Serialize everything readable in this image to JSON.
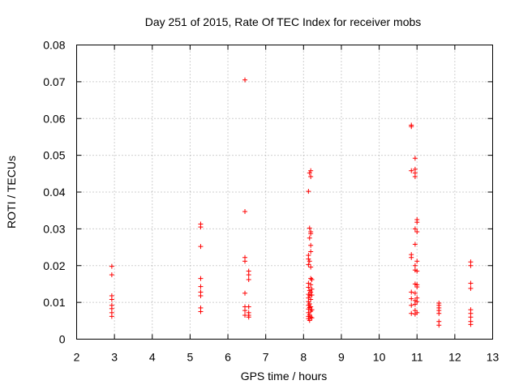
{
  "chart_data": {
    "type": "scatter",
    "title": "Day 251 of 2015, Rate Of TEC Index for receiver mobs",
    "xlabel": "GPS time / hours",
    "ylabel": "ROTI / TECUs",
    "xlim": [
      2,
      13
    ],
    "ylim": [
      0,
      0.08
    ],
    "x_ticks": [
      "2",
      "3",
      "4",
      "5",
      "6",
      "7",
      "8",
      "9",
      "10",
      "11",
      "12",
      "13"
    ],
    "y_ticks": [
      "0",
      "0.01",
      "0.02",
      "0.03",
      "0.04",
      "0.05",
      "0.06",
      "0.07",
      "0.08"
    ],
    "grid": true,
    "marker": "+",
    "color": "#ff0000",
    "series": [
      {
        "name": "mobs",
        "points": [
          [
            2.93,
            0.0198
          ],
          [
            2.93,
            0.0175
          ],
          [
            2.93,
            0.0118
          ],
          [
            2.93,
            0.0108
          ],
          [
            2.93,
            0.0092
          ],
          [
            2.93,
            0.0083
          ],
          [
            2.93,
            0.0072
          ],
          [
            2.93,
            0.0062
          ],
          [
            5.28,
            0.0313
          ],
          [
            5.28,
            0.0305
          ],
          [
            5.28,
            0.0252
          ],
          [
            5.28,
            0.0165
          ],
          [
            5.28,
            0.0143
          ],
          [
            5.28,
            0.0128
          ],
          [
            5.28,
            0.0118
          ],
          [
            5.28,
            0.0085
          ],
          [
            5.28,
            0.0075
          ],
          [
            6.45,
            0.0705
          ],
          [
            6.45,
            0.0347
          ],
          [
            6.45,
            0.0222
          ],
          [
            6.45,
            0.0212
          ],
          [
            6.45,
            0.0125
          ],
          [
            6.45,
            0.0088
          ],
          [
            6.45,
            0.0078
          ],
          [
            6.45,
            0.0065
          ],
          [
            6.55,
            0.0185
          ],
          [
            6.55,
            0.0175
          ],
          [
            6.55,
            0.0162
          ],
          [
            6.55,
            0.0088
          ],
          [
            6.55,
            0.0072
          ],
          [
            6.55,
            0.0065
          ],
          [
            6.55,
            0.006
          ],
          [
            8.13,
            0.0402
          ],
          [
            8.13,
            0.0228
          ],
          [
            8.13,
            0.0218
          ],
          [
            8.13,
            0.0203
          ],
          [
            8.13,
            0.0152
          ],
          [
            8.13,
            0.0141
          ],
          [
            8.13,
            0.0122
          ],
          [
            8.13,
            0.0112
          ],
          [
            8.13,
            0.0102
          ],
          [
            8.13,
            0.0092
          ],
          [
            8.13,
            0.0082
          ],
          [
            8.13,
            0.0072
          ],
          [
            8.13,
            0.0062
          ],
          [
            8.13,
            0.0056
          ],
          [
            8.16,
            0.0452
          ],
          [
            8.16,
            0.0302
          ],
          [
            8.16,
            0.0275
          ],
          [
            8.16,
            0.0212
          ],
          [
            8.16,
            0.0132
          ],
          [
            8.16,
            0.0118
          ],
          [
            8.16,
            0.0096
          ],
          [
            8.16,
            0.0086
          ],
          [
            8.16,
            0.0066
          ],
          [
            8.16,
            0.0051
          ],
          [
            8.19,
            0.0458
          ],
          [
            8.19,
            0.0442
          ],
          [
            8.19,
            0.0292
          ],
          [
            8.19,
            0.0287
          ],
          [
            8.19,
            0.0255
          ],
          [
            8.19,
            0.0238
          ],
          [
            8.19,
            0.0196
          ],
          [
            8.19,
            0.0165
          ],
          [
            8.19,
            0.0148
          ],
          [
            8.19,
            0.0128
          ],
          [
            8.19,
            0.0108
          ],
          [
            8.19,
            0.0088
          ],
          [
            8.19,
            0.0076
          ],
          [
            8.19,
            0.006
          ],
          [
            8.22,
            0.0162
          ],
          [
            8.22,
            0.0136
          ],
          [
            8.22,
            0.012
          ],
          [
            8.22,
            0.008
          ],
          [
            8.22,
            0.0058
          ],
          [
            10.85,
            0.0582
          ],
          [
            10.85,
            0.0578
          ],
          [
            10.85,
            0.0458
          ],
          [
            10.85,
            0.023
          ],
          [
            10.85,
            0.0222
          ],
          [
            10.85,
            0.0128
          ],
          [
            10.85,
            0.011
          ],
          [
            10.85,
            0.0092
          ],
          [
            10.85,
            0.007
          ],
          [
            10.95,
            0.0492
          ],
          [
            10.95,
            0.0462
          ],
          [
            10.95,
            0.0452
          ],
          [
            10.95,
            0.0442
          ],
          [
            10.95,
            0.03
          ],
          [
            10.95,
            0.0258
          ],
          [
            10.95,
            0.02
          ],
          [
            10.95,
            0.0188
          ],
          [
            10.95,
            0.015
          ],
          [
            10.95,
            0.0125
          ],
          [
            10.95,
            0.0105
          ],
          [
            10.95,
            0.0095
          ],
          [
            10.95,
            0.0078
          ],
          [
            10.95,
            0.0068
          ],
          [
            11.0,
            0.0325
          ],
          [
            11.0,
            0.0318
          ],
          [
            11.0,
            0.0292
          ],
          [
            11.0,
            0.0212
          ],
          [
            11.0,
            0.0185
          ],
          [
            11.0,
            0.0148
          ],
          [
            11.0,
            0.0142
          ],
          [
            11.0,
            0.0112
          ],
          [
            11.0,
            0.0102
          ],
          [
            11.0,
            0.0072
          ],
          [
            11.58,
            0.0098
          ],
          [
            11.58,
            0.0092
          ],
          [
            11.58,
            0.0085
          ],
          [
            11.58,
            0.0078
          ],
          [
            11.58,
            0.007
          ],
          [
            11.58,
            0.0048
          ],
          [
            11.58,
            0.0038
          ],
          [
            12.42,
            0.021
          ],
          [
            12.42,
            0.02
          ],
          [
            12.42,
            0.0152
          ],
          [
            12.42,
            0.0138
          ],
          [
            12.42,
            0.008
          ],
          [
            12.42,
            0.007
          ],
          [
            12.42,
            0.006
          ],
          [
            12.42,
            0.0048
          ],
          [
            12.42,
            0.004
          ]
        ]
      }
    ]
  }
}
